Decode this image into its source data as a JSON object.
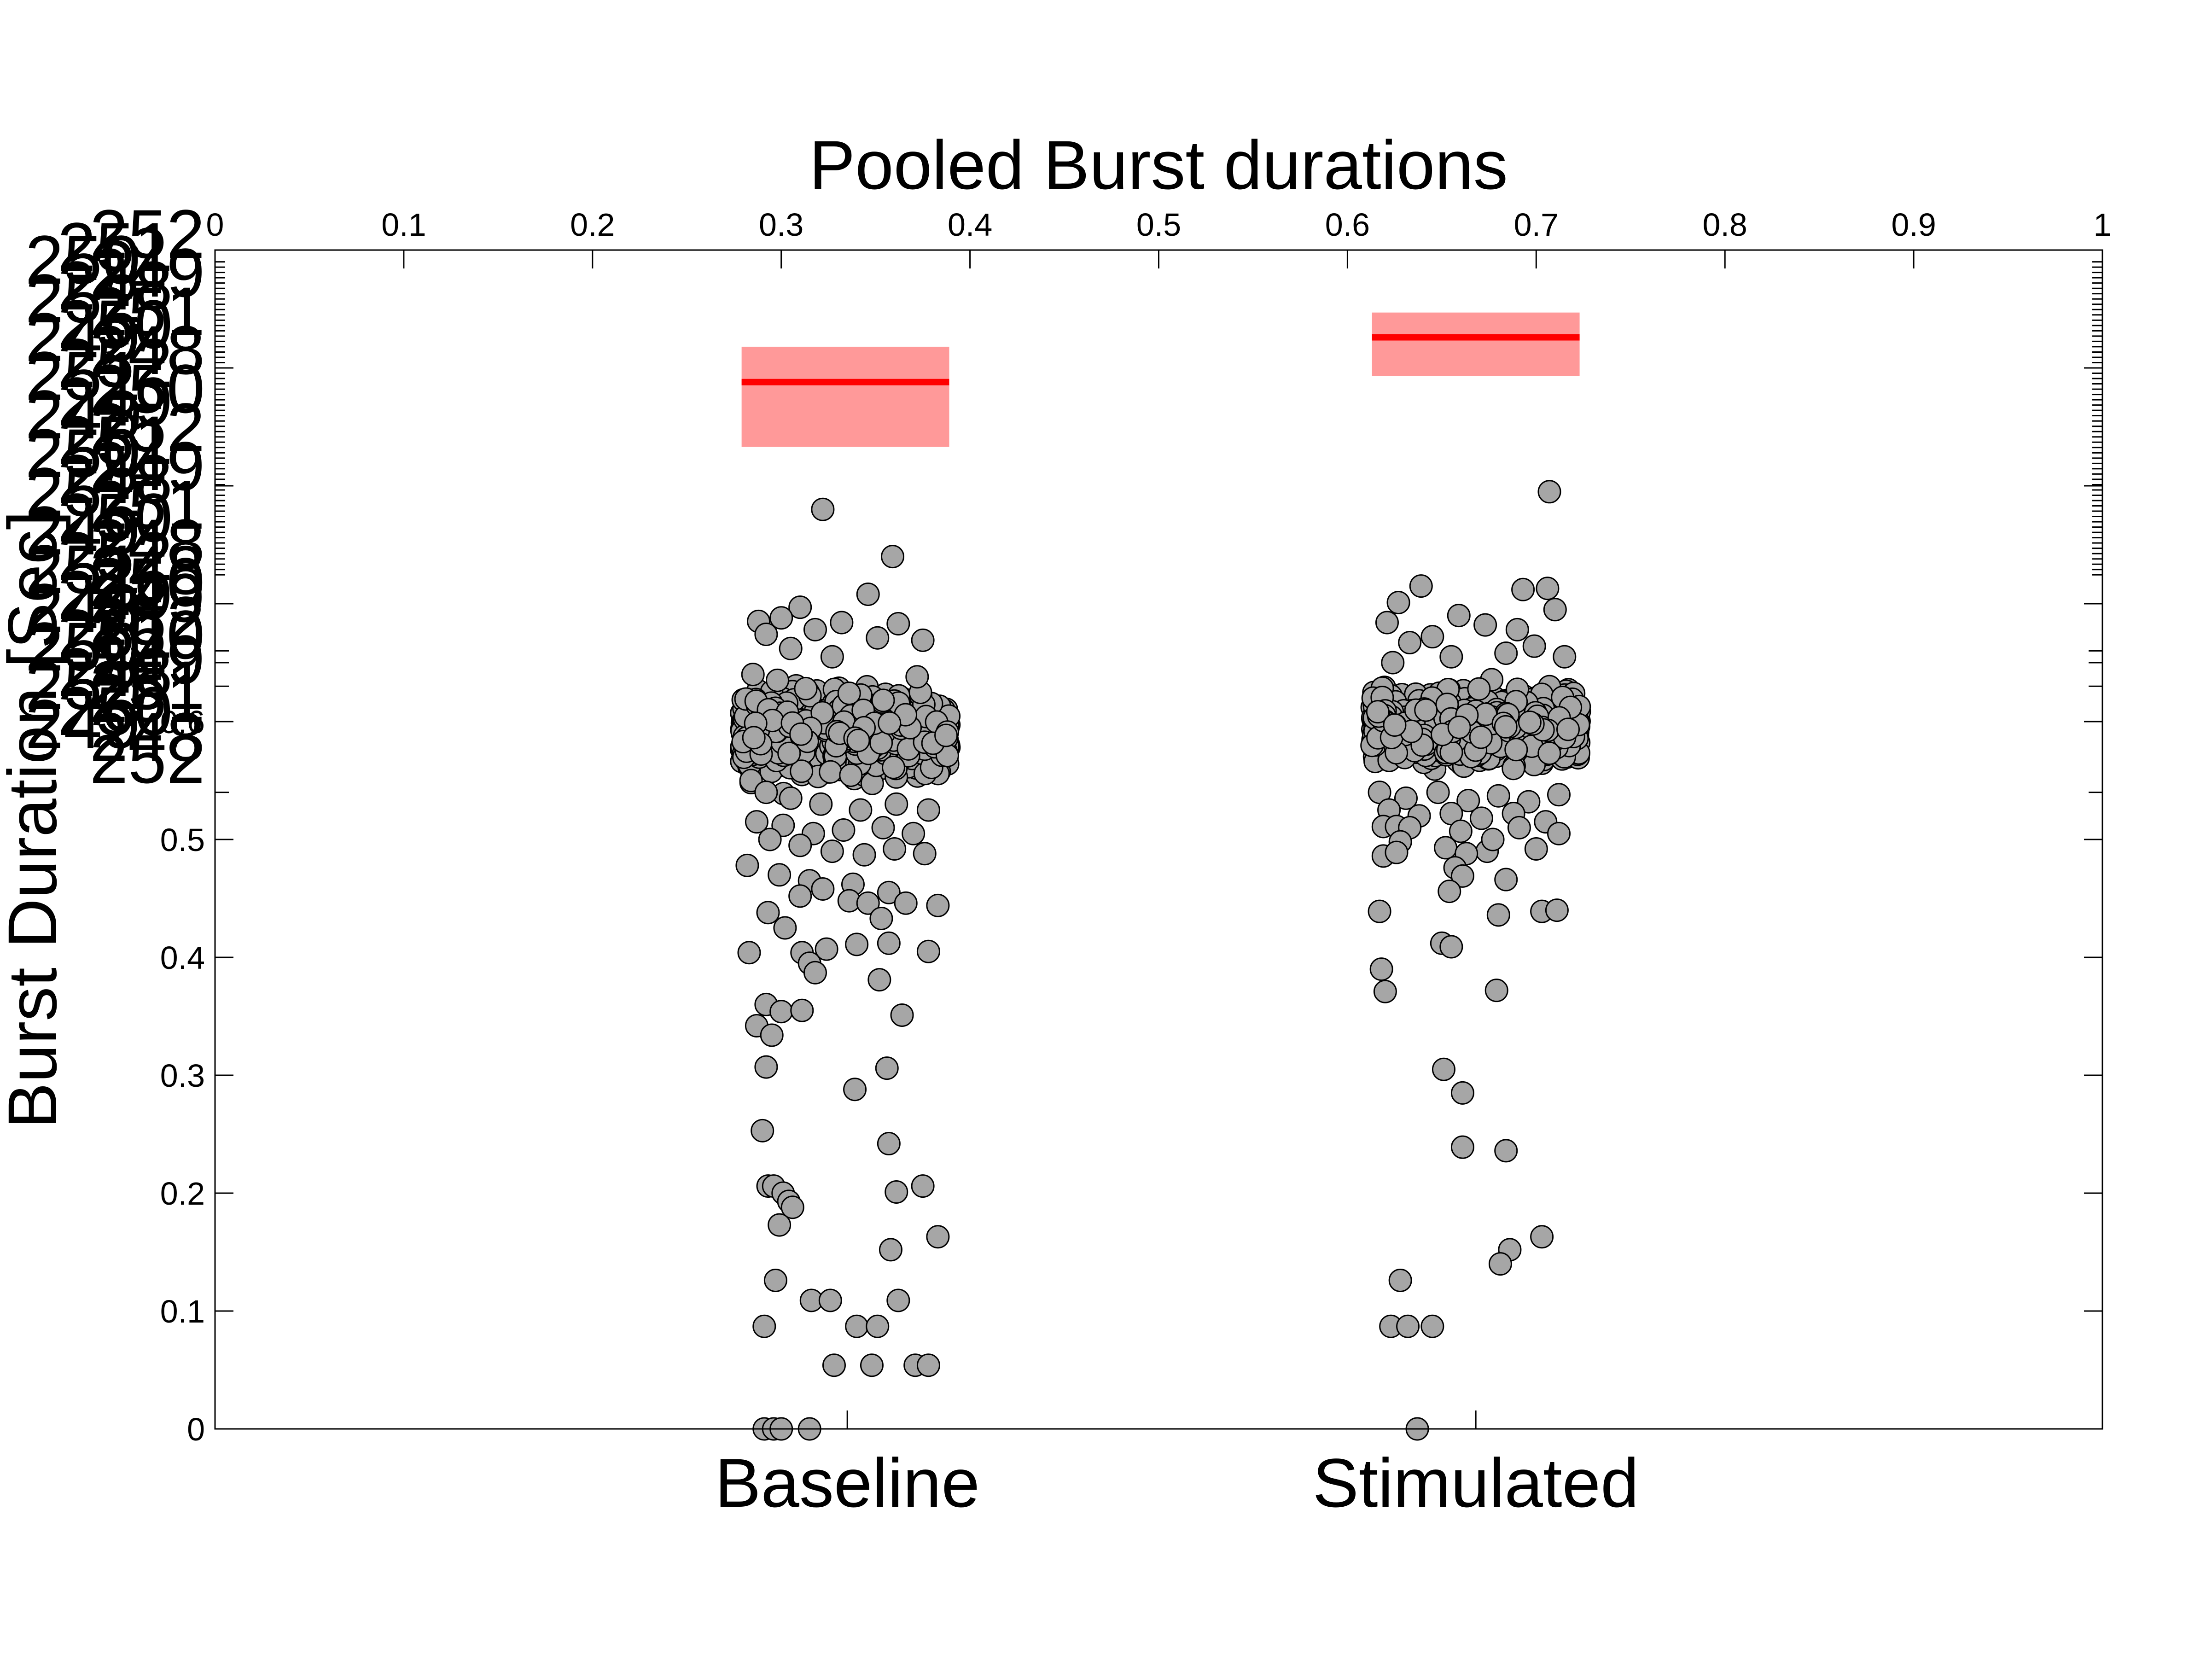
{
  "chart_data": {
    "type": "scatter",
    "title": "Pooled Burst durations",
    "ylabel": "Burst Duration [Sec]",
    "xlabel": "",
    "categories": [
      "Baseline",
      "Stimulated"
    ],
    "category_positions": [
      0.335,
      0.668
    ],
    "top_axis_ticks": [
      "0",
      "0.1",
      "0.2",
      "0.3",
      "0.4",
      "0.5",
      "0.6",
      "0.7",
      "0.8",
      "0.9",
      "1"
    ],
    "y_ticks": [
      "0",
      "0.1",
      "0.2",
      "0.3",
      "0.4",
      "0.5",
      "0.6"
    ],
    "y_overlap_labels": [
      "252",
      "251",
      "250",
      "249",
      "248"
    ],
    "xlim": [
      0,
      1
    ],
    "ylim": [
      0,
      1
    ],
    "grid": false,
    "legend": "none",
    "jitter_range": [
      0.279,
      0.391
    ],
    "colors": {
      "marker_fill": "#a6a6a6",
      "marker_edge": "#000000",
      "mean_line": "#ff0000",
      "band": "#ff9999"
    },
    "summary": [
      {
        "name": "Baseline",
        "mean": 0.888,
        "band_low": 0.833,
        "band_high": 0.918,
        "x_range": [
          0.279,
          0.389
        ]
      },
      {
        "name": "Stimulated",
        "mean": 0.926,
        "band_low": 0.893,
        "band_high": 0.947,
        "x_range": [
          0.613,
          0.723
        ]
      }
    ],
    "series": [
      {
        "name": "Baseline",
        "core": {
          "count": 1300,
          "center": 0.59,
          "spread": 0.035
        },
        "outliers": [
          [
            0.322,
            0.78
          ],
          [
            0.359,
            0.74
          ],
          [
            0.346,
            0.708
          ],
          [
            0.31,
            0.697
          ],
          [
            0.3,
            0.688
          ],
          [
            0.288,
            0.685
          ],
          [
            0.332,
            0.684
          ],
          [
            0.362,
            0.683
          ],
          [
            0.292,
            0.674
          ],
          [
            0.375,
            0.669
          ],
          [
            0.285,
            0.64
          ],
          [
            0.298,
            0.635
          ],
          [
            0.313,
            0.628
          ],
          [
            0.336,
            0.624
          ],
          [
            0.354,
            0.618
          ],
          [
            0.372,
            0.638
          ],
          [
            0.327,
            0.655
          ],
          [
            0.305,
            0.662
          ],
          [
            0.351,
            0.671
          ],
          [
            0.318,
            0.678
          ],
          [
            0.284,
            0.55
          ],
          [
            0.292,
            0.54
          ],
          [
            0.305,
            0.535
          ],
          [
            0.321,
            0.53
          ],
          [
            0.342,
            0.525
          ],
          [
            0.361,
            0.53
          ],
          [
            0.378,
            0.525
          ],
          [
            0.287,
            0.515
          ],
          [
            0.301,
            0.512
          ],
          [
            0.317,
            0.505
          ],
          [
            0.333,
            0.508
          ],
          [
            0.354,
            0.51
          ],
          [
            0.37,
            0.505
          ],
          [
            0.294,
            0.5
          ],
          [
            0.31,
            0.495
          ],
          [
            0.327,
            0.49
          ],
          [
            0.344,
            0.487
          ],
          [
            0.36,
            0.492
          ],
          [
            0.376,
            0.488
          ],
          [
            0.282,
            0.478
          ],
          [
            0.299,
            0.47
          ],
          [
            0.315,
            0.465
          ],
          [
            0.322,
            0.458
          ],
          [
            0.338,
            0.462
          ],
          [
            0.357,
            0.455
          ],
          [
            0.31,
            0.452
          ],
          [
            0.336,
            0.448
          ],
          [
            0.346,
            0.446
          ],
          [
            0.366,
            0.446
          ],
          [
            0.383,
            0.444
          ],
          [
            0.353,
            0.433
          ],
          [
            0.293,
            0.438
          ],
          [
            0.302,
            0.425
          ],
          [
            0.34,
            0.411
          ],
          [
            0.357,
            0.412
          ],
          [
            0.283,
            0.404
          ],
          [
            0.311,
            0.404
          ],
          [
            0.324,
            0.407
          ],
          [
            0.378,
            0.405
          ],
          [
            0.315,
            0.395
          ],
          [
            0.318,
            0.387
          ],
          [
            0.352,
            0.381
          ],
          [
            0.292,
            0.36
          ],
          [
            0.3,
            0.354
          ],
          [
            0.311,
            0.355
          ],
          [
            0.287,
            0.342
          ],
          [
            0.295,
            0.334
          ],
          [
            0.364,
            0.351
          ],
          [
            0.292,
            0.307
          ],
          [
            0.356,
            0.306
          ],
          [
            0.339,
            0.288
          ],
          [
            0.29,
            0.253
          ],
          [
            0.357,
            0.242
          ],
          [
            0.293,
            0.206
          ],
          [
            0.296,
            0.206
          ],
          [
            0.301,
            0.2
          ],
          [
            0.304,
            0.193
          ],
          [
            0.306,
            0.188
          ],
          [
            0.299,
            0.173
          ],
          [
            0.361,
            0.201
          ],
          [
            0.375,
            0.206
          ],
          [
            0.383,
            0.163
          ],
          [
            0.358,
            0.152
          ],
          [
            0.297,
            0.126
          ],
          [
            0.316,
            0.109
          ],
          [
            0.326,
            0.109
          ],
          [
            0.362,
            0.109
          ],
          [
            0.291,
            0.087
          ],
          [
            0.34,
            0.087
          ],
          [
            0.351,
            0.087
          ],
          [
            0.328,
            0.054
          ],
          [
            0.348,
            0.054
          ],
          [
            0.371,
            0.054
          ],
          [
            0.378,
            0.054
          ],
          [
            0.291,
            0.0
          ],
          [
            0.296,
            0.0
          ],
          [
            0.3,
            0.0
          ],
          [
            0.315,
            0.0
          ]
        ]
      },
      {
        "name": "Stimulated",
        "core": {
          "count": 1300,
          "center": 0.595,
          "spread": 0.03
        },
        "outliers": [
          [
            0.707,
            0.795
          ],
          [
            0.639,
            0.715
          ],
          [
            0.693,
            0.712
          ],
          [
            0.706,
            0.713
          ],
          [
            0.627,
            0.701
          ],
          [
            0.71,
            0.695
          ],
          [
            0.659,
            0.69
          ],
          [
            0.621,
            0.684
          ],
          [
            0.673,
            0.682
          ],
          [
            0.69,
            0.678
          ],
          [
            0.633,
            0.667
          ],
          [
            0.645,
            0.672
          ],
          [
            0.699,
            0.664
          ],
          [
            0.624,
            0.65
          ],
          [
            0.655,
            0.655
          ],
          [
            0.684,
            0.658
          ],
          [
            0.715,
            0.655
          ],
          [
            0.617,
            0.54
          ],
          [
            0.631,
            0.535
          ],
          [
            0.648,
            0.54
          ],
          [
            0.664,
            0.533
          ],
          [
            0.68,
            0.537
          ],
          [
            0.696,
            0.532
          ],
          [
            0.712,
            0.538
          ],
          [
            0.622,
            0.525
          ],
          [
            0.638,
            0.52
          ],
          [
            0.655,
            0.522
          ],
          [
            0.671,
            0.518
          ],
          [
            0.688,
            0.522
          ],
          [
            0.705,
            0.515
          ],
          [
            0.619,
            0.511
          ],
          [
            0.626,
            0.511
          ],
          [
            0.633,
            0.51
          ],
          [
            0.66,
            0.507
          ],
          [
            0.691,
            0.51
          ],
          [
            0.712,
            0.505
          ],
          [
            0.628,
            0.498
          ],
          [
            0.652,
            0.493
          ],
          [
            0.674,
            0.49
          ],
          [
            0.7,
            0.492
          ],
          [
            0.619,
            0.486
          ],
          [
            0.626,
            0.489
          ],
          [
            0.663,
            0.488
          ],
          [
            0.677,
            0.5
          ],
          [
            0.684,
            0.466
          ],
          [
            0.657,
            0.476
          ],
          [
            0.661,
            0.469
          ],
          [
            0.654,
            0.456
          ],
          [
            0.617,
            0.439
          ],
          [
            0.68,
            0.436
          ],
          [
            0.703,
            0.439
          ],
          [
            0.711,
            0.44
          ],
          [
            0.65,
            0.412
          ],
          [
            0.655,
            0.409
          ],
          [
            0.618,
            0.39
          ],
          [
            0.62,
            0.371
          ],
          [
            0.679,
            0.372
          ],
          [
            0.651,
            0.305
          ],
          [
            0.661,
            0.285
          ],
          [
            0.661,
            0.239
          ],
          [
            0.684,
            0.236
          ],
          [
            0.703,
            0.163
          ],
          [
            0.686,
            0.152
          ],
          [
            0.681,
            0.14
          ],
          [
            0.628,
            0.126
          ],
          [
            0.623,
            0.087
          ],
          [
            0.632,
            0.087
          ],
          [
            0.645,
            0.087
          ],
          [
            0.637,
            0.0
          ]
        ]
      }
    ]
  }
}
